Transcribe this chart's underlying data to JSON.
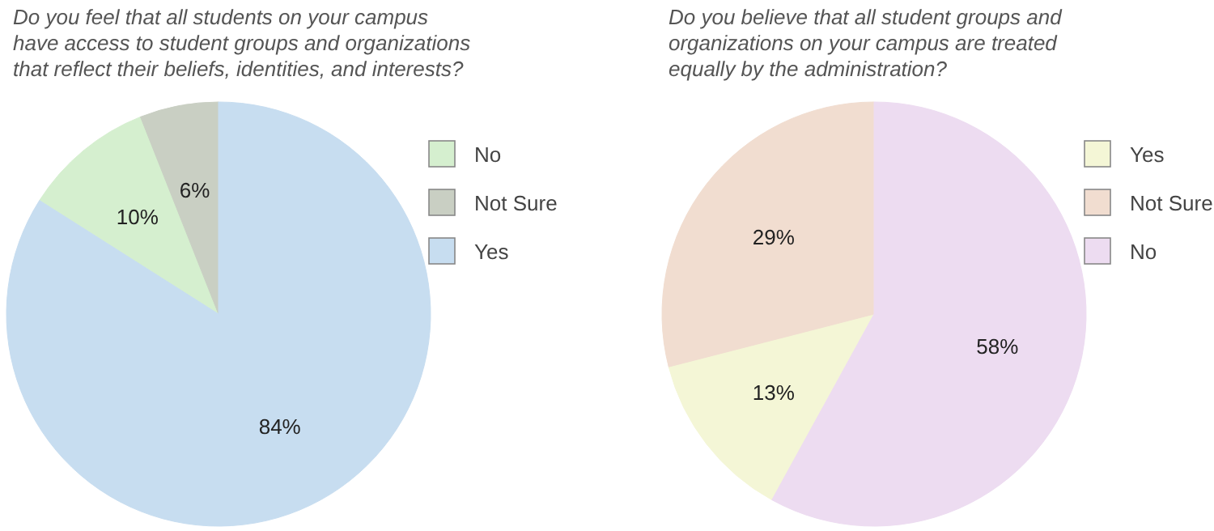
{
  "chart_data": [
    {
      "type": "pie",
      "title": "Do you feel that all students on your campus\nhave access to student groups and organizations\nthat reflect their beliefs, identities, and interests?",
      "categories": [
        "No",
        "Not Sure",
        "Yes"
      ],
      "values": [
        10,
        6,
        84
      ],
      "value_labels": [
        "10%",
        "6%",
        "84%"
      ],
      "colors": [
        "#d5efcf",
        "#c9cfc3",
        "#c7ddf0"
      ],
      "legend": "right"
    },
    {
      "type": "pie",
      "title": "Do you believe that all student groups and\norganizations on your campus are treated\nequally by the administration?",
      "categories": [
        "Yes",
        "Not Sure",
        "No"
      ],
      "values": [
        13,
        29,
        58
      ],
      "value_labels": [
        "13%",
        "29%",
        "58%"
      ],
      "colors": [
        "#f4f6d6",
        "#f1ddd0",
        "#eddcf1"
      ],
      "legend": "right"
    }
  ]
}
